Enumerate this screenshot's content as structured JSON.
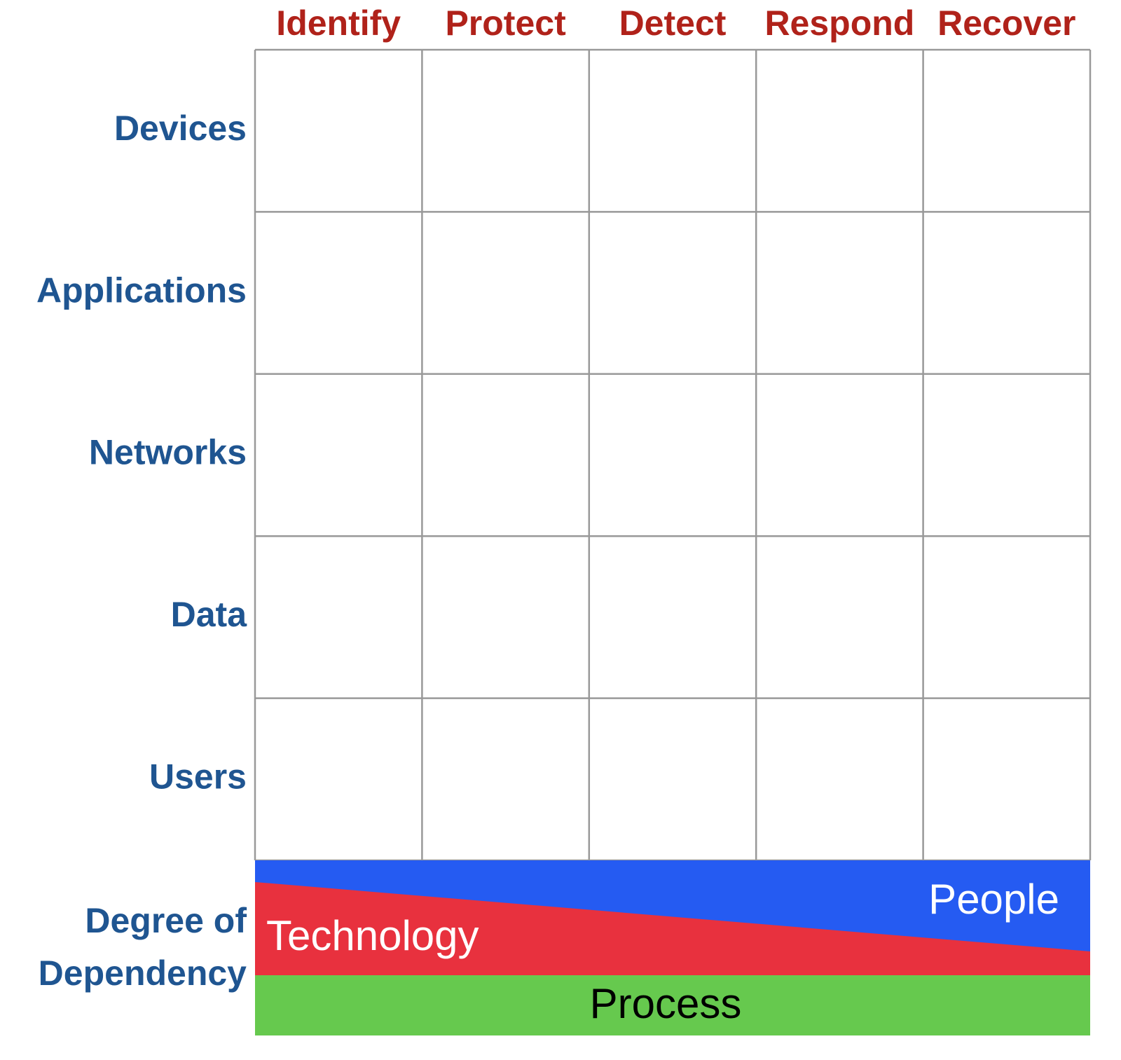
{
  "columns": [
    "Identify",
    "Protect",
    "Detect",
    "Respond",
    "Recover"
  ],
  "rows": [
    "Devices",
    "Applications",
    "Networks",
    "Data",
    "Users"
  ],
  "dependency": {
    "label": [
      "Degree of",
      "Dependency"
    ],
    "people": "People",
    "technology": "Technology",
    "process": "Process"
  }
}
